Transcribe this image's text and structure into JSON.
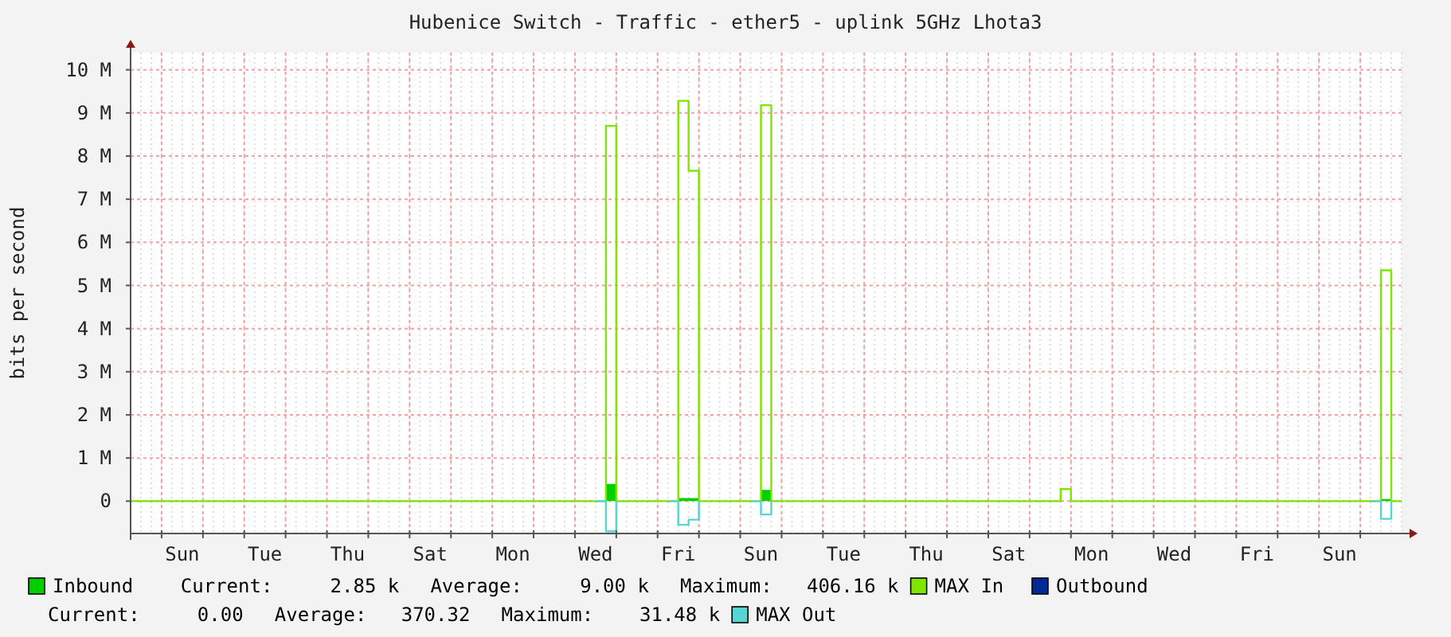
{
  "chart_data": {
    "type": "step",
    "title": "Hubenice Switch - Traffic - ether5 - uplink 5GHz Lhota3",
    "ylabel": "bits per second",
    "categories": [
      null,
      null,
      null,
      null,
      null,
      "Sun",
      null,
      null,
      null,
      null,
      null,
      null,
      null,
      "Tue",
      null,
      null,
      null,
      null,
      null,
      null,
      null,
      "Thu",
      null,
      null,
      null,
      null,
      null,
      null,
      null,
      "Sat",
      null,
      null,
      null,
      null,
      null,
      null,
      null,
      "Mon",
      null,
      null,
      null,
      null,
      null,
      null,
      null,
      "Wed",
      null,
      null,
      null,
      null,
      null,
      null,
      null,
      "Fri",
      null,
      null,
      null,
      null,
      null,
      null,
      null,
      "Sun",
      null,
      null,
      null,
      null,
      null,
      null,
      null,
      "Tue",
      null,
      null,
      null,
      null,
      null,
      null,
      null,
      "Thu",
      null,
      null,
      null,
      null,
      null,
      null,
      null,
      "Sat",
      null,
      null,
      null,
      null,
      null,
      null,
      null,
      "Mon",
      null,
      null,
      null,
      null,
      null,
      null,
      null,
      "Wed",
      null,
      null,
      null,
      null,
      null,
      null,
      null,
      "Fri",
      null,
      null,
      null,
      null,
      null,
      null,
      null,
      "Sun",
      null,
      null,
      null,
      null,
      null,
      null
    ],
    "ylim": [
      -750000,
      10400000
    ],
    "yticks": [
      {
        "value": 0,
        "label": "0"
      },
      {
        "value": 1000000,
        "label": "1 M"
      },
      {
        "value": 2000000,
        "label": "2 M"
      },
      {
        "value": 3000000,
        "label": "3 M"
      },
      {
        "value": 4000000,
        "label": "4 M"
      },
      {
        "value": 5000000,
        "label": "5 M"
      },
      {
        "value": 6000000,
        "label": "6 M"
      },
      {
        "value": 7000000,
        "label": "7 M"
      },
      {
        "value": 8000000,
        "label": "8 M"
      },
      {
        "value": 9000000,
        "label": "9 M"
      },
      {
        "value": 10000000,
        "label": "10 M"
      }
    ],
    "grid": true,
    "legend": "bottom",
    "series": [
      {
        "name": "Inbound",
        "type": "area",
        "color": "#00cf00",
        "values": [
          0,
          0,
          0,
          0,
          0,
          0,
          0,
          0,
          0,
          0,
          0,
          0,
          0,
          0,
          0,
          0,
          0,
          0,
          0,
          0,
          0,
          0,
          0,
          0,
          0,
          0,
          0,
          0,
          0,
          0,
          0,
          0,
          0,
          0,
          0,
          0,
          0,
          0,
          0,
          0,
          0,
          0,
          0,
          0,
          0,
          0,
          400000,
          0,
          0,
          0,
          0,
          0,
          0,
          70000,
          70000,
          0,
          0,
          0,
          0,
          0,
          0,
          260000,
          0,
          0,
          0,
          0,
          0,
          0,
          0,
          0,
          0,
          0,
          0,
          0,
          0,
          0,
          0,
          0,
          0,
          0,
          0,
          0,
          0,
          0,
          0,
          0,
          0,
          0,
          0,
          0,
          0,
          0,
          0,
          0,
          0,
          0,
          0,
          0,
          0,
          0,
          0,
          0,
          0,
          0,
          0,
          0,
          0,
          0,
          0,
          0,
          0,
          0,
          0,
          0,
          0,
          0,
          0,
          0,
          0,
          0,
          0,
          50000,
          0,
          0
        ]
      },
      {
        "name": "MAX In",
        "color": "#7ee600",
        "values": [
          0,
          0,
          0,
          0,
          0,
          0,
          0,
          0,
          0,
          0,
          0,
          0,
          0,
          0,
          0,
          0,
          0,
          0,
          0,
          0,
          0,
          0,
          0,
          0,
          0,
          0,
          0,
          0,
          0,
          0,
          0,
          0,
          0,
          0,
          0,
          0,
          0,
          0,
          0,
          0,
          0,
          0,
          0,
          0,
          0,
          0,
          8700000,
          0,
          0,
          0,
          0,
          0,
          0,
          9280000,
          7660000,
          0,
          0,
          0,
          0,
          0,
          0,
          9180000,
          0,
          0,
          0,
          0,
          0,
          0,
          0,
          0,
          0,
          0,
          0,
          0,
          0,
          0,
          0,
          0,
          0,
          0,
          0,
          0,
          0,
          0,
          0,
          0,
          0,
          0,
          0,
          0,
          280000,
          0,
          0,
          0,
          0,
          0,
          0,
          0,
          0,
          0,
          0,
          0,
          0,
          0,
          0,
          0,
          0,
          0,
          0,
          0,
          0,
          0,
          0,
          0,
          0,
          0,
          0,
          0,
          0,
          0,
          0,
          5350000,
          0,
          0
        ]
      },
      {
        "name": "Outbound",
        "type": "area",
        "color": "#002a97",
        "values": [
          null,
          null,
          null,
          null,
          null,
          null,
          null,
          null,
          null,
          null,
          null,
          null,
          null,
          null,
          null,
          null,
          null,
          null,
          null,
          null,
          null,
          null,
          null,
          null,
          null,
          null,
          null,
          null,
          null,
          null,
          null,
          null,
          null,
          null,
          null,
          null,
          null,
          null,
          null,
          null,
          null,
          null,
          null,
          null,
          null,
          null,
          null,
          null,
          null,
          null,
          null,
          null,
          null,
          null,
          null,
          null,
          null,
          null,
          null,
          null,
          null,
          null,
          null,
          null,
          null,
          null,
          null,
          null,
          null,
          null,
          null,
          null,
          null,
          null,
          null,
          null,
          null,
          null,
          null,
          null,
          null,
          null,
          null,
          null,
          null,
          null,
          null,
          null,
          null,
          null,
          null,
          null,
          null,
          null,
          null,
          null,
          null,
          null,
          null,
          null,
          null,
          null,
          null,
          null,
          null,
          null,
          null,
          null,
          null,
          null,
          null,
          null,
          null,
          null,
          null,
          null,
          null,
          null,
          null,
          null,
          null,
          null,
          null,
          null
        ]
      },
      {
        "name": "MAX Out",
        "color": "#55d6d3",
        "values": [
          null,
          null,
          null,
          null,
          null,
          null,
          null,
          null,
          null,
          null,
          null,
          null,
          null,
          null,
          null,
          null,
          null,
          null,
          null,
          null,
          null,
          null,
          null,
          null,
          null,
          null,
          null,
          null,
          null,
          null,
          null,
          null,
          null,
          null,
          null,
          null,
          null,
          null,
          null,
          null,
          null,
          null,
          null,
          null,
          null,
          0,
          -700000,
          0,
          null,
          null,
          null,
          null,
          0,
          -550000,
          -430000,
          0,
          null,
          null,
          null,
          null,
          0,
          -310000,
          0,
          null,
          null,
          null,
          null,
          null,
          null,
          null,
          null,
          null,
          null,
          null,
          null,
          null,
          null,
          null,
          null,
          null,
          null,
          null,
          null,
          null,
          null,
          null,
          null,
          null,
          null,
          null,
          null,
          null,
          null,
          null,
          null,
          null,
          null,
          null,
          null,
          null,
          null,
          null,
          null,
          null,
          null,
          null,
          null,
          null,
          null,
          null,
          null,
          null,
          null,
          null,
          null,
          null,
          null,
          null,
          null,
          null,
          0,
          -410000,
          0,
          null
        ]
      }
    ],
    "annotations": [
      "Current:     2.85 k",
      "Average:     9.00 k",
      "Maximum:   406.16 k",
      "Current:     0.00",
      "Average:   370.32",
      "Maximum:    31.48 k"
    ]
  }
}
